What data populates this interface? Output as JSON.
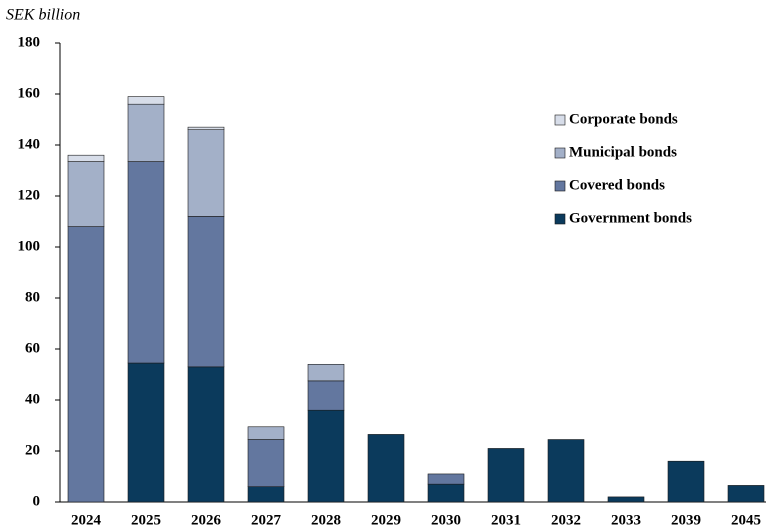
{
  "chart_data": {
    "type": "stacked_bar",
    "y_axis_label": "SEK billion",
    "categories": [
      "2024",
      "2025",
      "2026",
      "2027",
      "2028",
      "2029",
      "2030",
      "2031",
      "2032",
      "2033",
      "2039",
      "2045"
    ],
    "series": [
      {
        "name": "Government bonds",
        "color": "#0b3a5c",
        "values": [
          0,
          54.5,
          53,
          6,
          36,
          26.5,
          7,
          21,
          24.5,
          2,
          16,
          6.5
        ]
      },
      {
        "name": "Covered bonds",
        "color": "#63779f",
        "values": [
          108,
          79,
          59,
          18.5,
          11.5,
          0,
          4,
          0,
          0,
          0,
          0,
          0
        ]
      },
      {
        "name": "Municipal bonds",
        "color": "#a3b0c8",
        "values": [
          25.5,
          22.5,
          34,
          5,
          6.5,
          0,
          0,
          0,
          0,
          0,
          0,
          0
        ]
      },
      {
        "name": "Corporate bonds",
        "color": "#d7dde9",
        "values": [
          2.5,
          3,
          1,
          0,
          0,
          0,
          0,
          0,
          0,
          0,
          0,
          0
        ]
      }
    ],
    "ylim": [
      0,
      180
    ],
    "yticks": [
      0,
      20,
      40,
      60,
      80,
      100,
      120,
      140,
      160,
      180
    ],
    "grid": false,
    "legend": "upper right"
  }
}
